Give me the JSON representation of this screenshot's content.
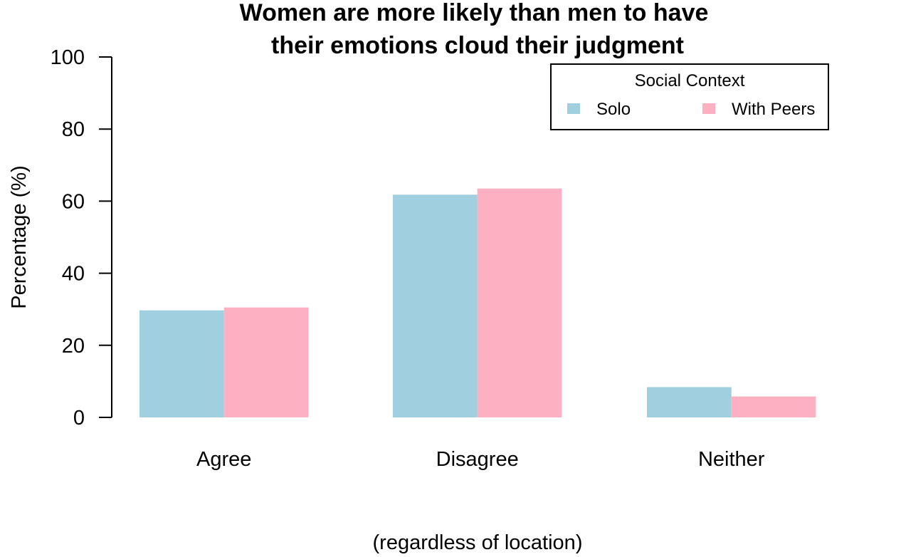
{
  "chart_data": {
    "type": "bar",
    "title_lines": [
      "Women are more likely than men to have",
      "their emotions cloud their judgment"
    ],
    "xlabel": "(regardless of location)",
    "ylabel": "Percentage (%)",
    "ylim": [
      0,
      100
    ],
    "yticks": [
      0,
      20,
      40,
      60,
      80,
      100
    ],
    "categories": [
      "Agree",
      "Disagree",
      "Neither"
    ],
    "series": [
      {
        "name": "Solo",
        "color": "#a0cfe0",
        "values": [
          29.7,
          61.8,
          8.4
        ]
      },
      {
        "name": "With Peers",
        "color": "#fdb0c1",
        "values": [
          30.5,
          63.5,
          5.8
        ]
      }
    ],
    "legend": {
      "title": "Social Context",
      "placement": "top-right"
    },
    "grid": false
  }
}
